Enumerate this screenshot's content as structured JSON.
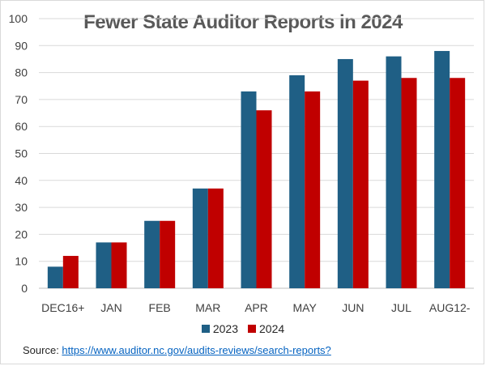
{
  "chart_data": {
    "type": "bar",
    "title": "Fewer State Auditor Reports in 2024",
    "categories": [
      "DEC16+",
      "JAN",
      "FEB",
      "MAR",
      "APR",
      "MAY",
      "JUN",
      "JUL",
      "AUG12-"
    ],
    "series": [
      {
        "name": "2023",
        "color": "#1f5f85",
        "values": [
          8,
          17,
          25,
          37,
          73,
          79,
          85,
          86,
          88
        ]
      },
      {
        "name": "2024",
        "color": "#c00000",
        "values": [
          12,
          17,
          25,
          37,
          66,
          73,
          77,
          78,
          78
        ]
      }
    ],
    "ylim": [
      0,
      100
    ],
    "yticks": [
      0,
      10,
      20,
      30,
      40,
      50,
      60,
      70,
      80,
      90,
      100
    ],
    "grid": true,
    "legend": "bottom"
  },
  "source": {
    "label": "Source: ",
    "link_text": "https://www.auditor.nc.gov/audits-reviews/search-reports?"
  }
}
